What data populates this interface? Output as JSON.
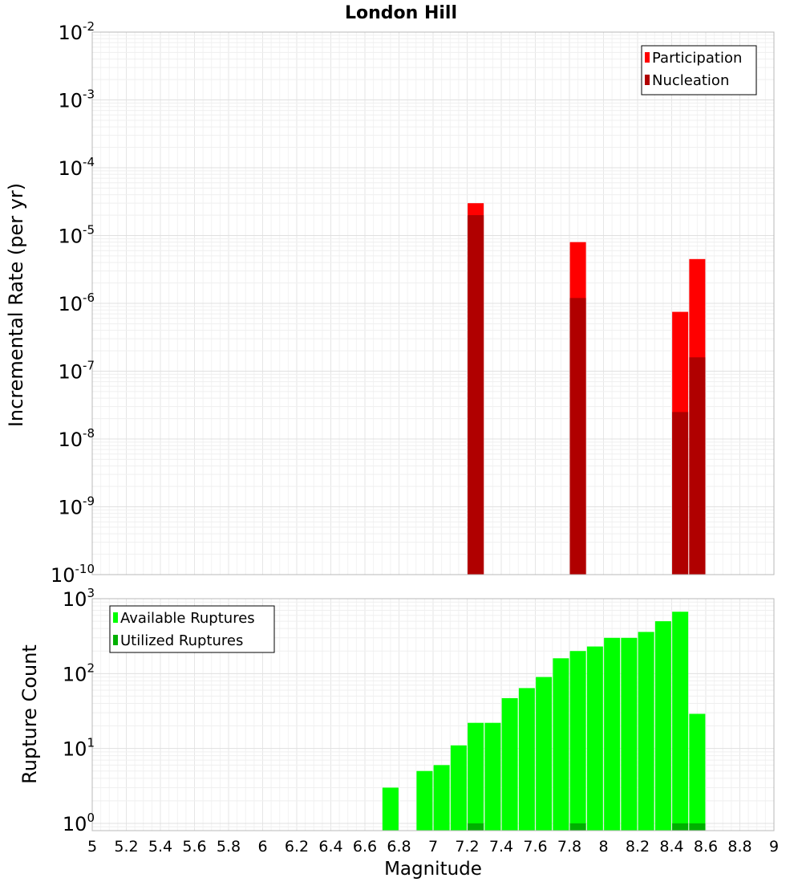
{
  "page": {
    "title": "London Hill"
  },
  "chart_data": [
    {
      "type": "bar",
      "title": "London Hill",
      "xlabel": "",
      "ylabel": "Incremental Rate (per yr)",
      "y_scale": "log",
      "ylim": [
        1e-10,
        0.01
      ],
      "xlim": [
        5,
        9
      ],
      "x_tick_labels": [
        "5",
        "5.2",
        "5.4",
        "5.6",
        "5.8",
        "6",
        "6.2",
        "6.4",
        "6.6",
        "6.8",
        "7",
        "7.2",
        "7.4",
        "7.6",
        "7.8",
        "8",
        "8.2",
        "8.4",
        "8.6",
        "8.8",
        "9"
      ],
      "y_tick_labels": [
        {
          "base": "10",
          "exp": "-2"
        },
        {
          "base": "10",
          "exp": "-3"
        },
        {
          "base": "10",
          "exp": "-4"
        },
        {
          "base": "10",
          "exp": "-5"
        },
        {
          "base": "10",
          "exp": "-6"
        },
        {
          "base": "10",
          "exp": "-7"
        },
        {
          "base": "10",
          "exp": "-8"
        },
        {
          "base": "10",
          "exp": "-9"
        },
        {
          "base": "10",
          "exp": "-10"
        }
      ],
      "legend_position": "top-right",
      "series": [
        {
          "name": "Participation",
          "color": "#ff0000",
          "x": [
            7.25,
            7.85,
            8.45,
            8.55
          ],
          "values": [
            3e-05,
            8e-06,
            7.5e-07,
            4.5e-06
          ]
        },
        {
          "name": "Nucleation",
          "color": "#b00000",
          "x": [
            7.25,
            7.85,
            8.45,
            8.55
          ],
          "values": [
            2e-05,
            1.2e-06,
            2.5e-08,
            1.6e-07
          ]
        }
      ],
      "grid": true
    },
    {
      "type": "bar",
      "title": "",
      "xlabel": "Magnitude",
      "ylabel": "Rupture Count",
      "y_scale": "log",
      "ylim": [
        0.8,
        1000
      ],
      "xlim": [
        5,
        9
      ],
      "x_tick_labels": [
        "5",
        "5.2",
        "5.4",
        "5.6",
        "5.8",
        "6",
        "6.2",
        "6.4",
        "6.6",
        "6.8",
        "7",
        "7.2",
        "7.4",
        "7.6",
        "7.8",
        "8",
        "8.2",
        "8.4",
        "8.6",
        "8.8",
        "9"
      ],
      "y_tick_labels": [
        {
          "base": "10",
          "exp": "3"
        },
        {
          "base": "10",
          "exp": "2"
        },
        {
          "base": "10",
          "exp": "1"
        },
        {
          "base": "10",
          "exp": "0"
        }
      ],
      "legend_position": "top-left",
      "series": [
        {
          "name": "Available Ruptures",
          "color": "#00ff00",
          "x": [
            6.75,
            6.95,
            7.05,
            7.15,
            7.25,
            7.35,
            7.45,
            7.55,
            7.65,
            7.75,
            7.85,
            7.95,
            8.05,
            8.15,
            8.25,
            8.35,
            8.45,
            8.55
          ],
          "values": [
            3,
            5,
            6,
            11,
            22,
            22,
            47,
            64,
            90,
            160,
            200,
            230,
            300,
            300,
            360,
            500,
            670,
            29
          ]
        },
        {
          "name": "Utilized Ruptures",
          "color": "#00b000",
          "x": [
            7.25,
            7.85,
            8.45,
            8.55
          ],
          "values": [
            1,
            1,
            1,
            1
          ]
        }
      ],
      "grid": true
    }
  ]
}
